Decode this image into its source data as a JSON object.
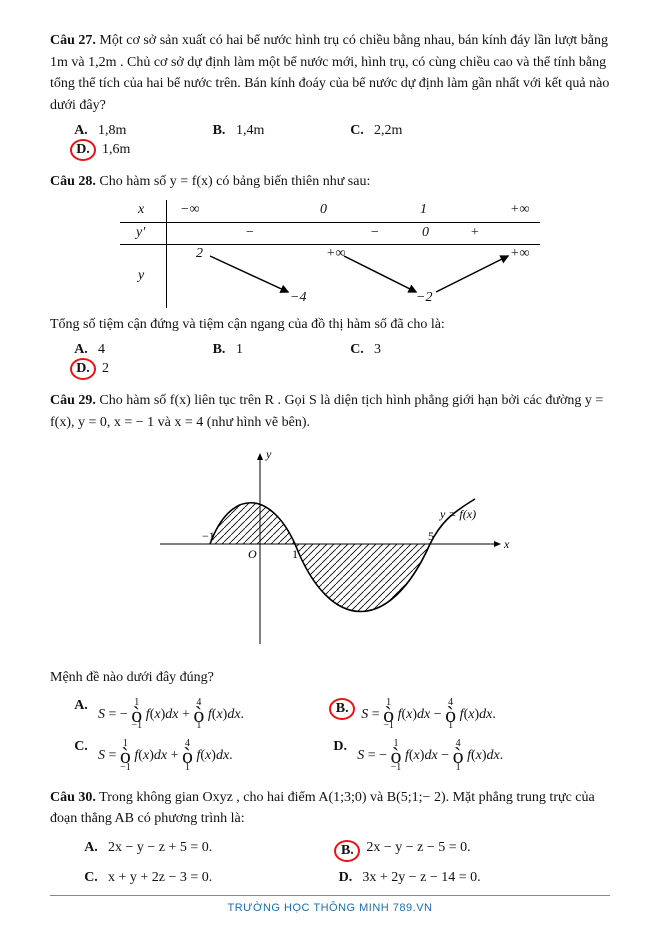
{
  "footer": "TRƯỜNG HỌC THÔNG MINH 789.VN",
  "q27": {
    "label": "Câu 27.",
    "text": "Một cơ sở sản xuất có hai bể nước hình trụ có chiều bằng nhau, bán kính đáy lần lượt bằng 1m và 1,2m . Chủ cơ sở dự định làm một bể nước mới, hình trụ, có cùng chiều cao và thể tính bằng tổng thể tích của hai bể nước trên. Bán kính đoáy của bể nước dự định làm gần nhất với kết quả nào dưới đây?",
    "opts": {
      "A": "1,8m",
      "B": "1,4m",
      "C": "2,2m",
      "D": "1,6m"
    },
    "correct": "D"
  },
  "q28": {
    "label": "Câu 28.",
    "intro": "Cho hàm số y = f(x) có bảng biến thiên như sau:",
    "table": {
      "x": {
        "lbl": "x",
        "vals": [
          "−∞",
          "0",
          "1",
          "+∞"
        ]
      },
      "yp": {
        "lbl": "y′",
        "vals": [
          "−",
          "−",
          "0",
          "+"
        ]
      },
      "y": {
        "lbl": "y",
        "tl": "2",
        "tr": "+∞",
        "bl": "−4",
        "brm": "−2",
        "far": "+∞"
      }
    },
    "after": "Tổng số tiệm cận đứng và tiệm cận ngang của đồ thị hàm số đã cho là:",
    "opts": {
      "A": "4",
      "B": "1",
      "C": "3",
      "D": "2"
    },
    "correct": "D"
  },
  "q29": {
    "label": "Câu 29.",
    "text1": "Cho hàm số f(x) liên tục trên R . Gọi S là diện tịch hình phẳng giới hạn bởi các đường y = f(x), y = 0, x = − 1 và x = 4 (như hình vẽ bên).",
    "after": "Mệnh đề nào dưới đây đúng?",
    "graph": {
      "xlabel": "x",
      "ylabel": "y",
      "xticks": [
        "−1",
        "O",
        "1",
        "5"
      ],
      "curvelabel": "y = f(x)"
    },
    "opts": {
      "A": [
        "−",
        "1",
        "−1",
        "+",
        "4",
        "1"
      ],
      "B": [
        "",
        "1",
        "−1",
        "−",
        "4",
        "1"
      ],
      "C": [
        "",
        "1",
        "−1",
        "+",
        "4",
        "1"
      ],
      "D": [
        "−",
        "1",
        "−1",
        "−",
        "4",
        "1"
      ]
    },
    "correct": "B"
  },
  "q30": {
    "label": "Câu 30.",
    "text": "Trong không gian Oxyz , cho hai điểm A(1;3;0) và B(5;1;− 2). Mặt phẳng trung trực của đoạn thẳng AB có phương trình là:",
    "opts": {
      "A": "2x − y − z + 5 = 0.",
      "B": "2x − y − z − 5 = 0.",
      "C": "x + y + 2z − 3 = 0.",
      "D": "3x + 2y − z − 14 = 0."
    },
    "correct": "B"
  }
}
